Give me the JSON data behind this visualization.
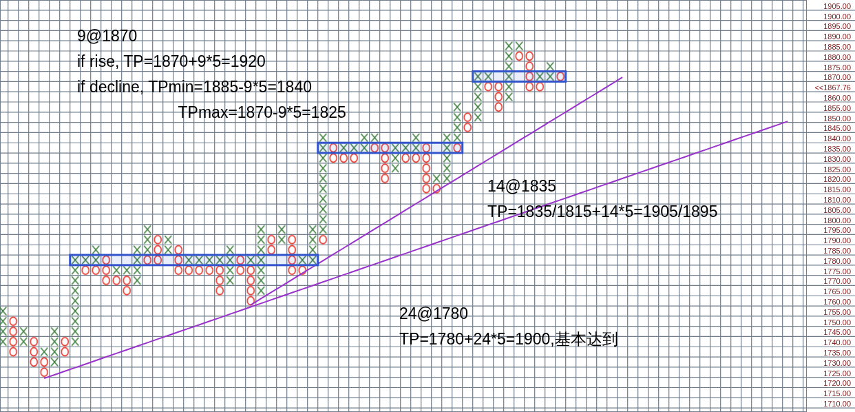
{
  "chart_data": {
    "type": "bar",
    "tick_labels": "y",
    "grid": true,
    "categories": [
      null,
      null,
      null,
      null,
      null,
      null,
      null,
      null,
      null,
      null,
      null,
      null,
      null,
      null,
      null,
      null,
      null,
      null,
      null,
      null,
      null,
      null,
      null,
      null,
      null,
      null,
      null,
      null,
      null,
      null,
      null,
      null,
      null,
      null,
      null,
      null,
      null,
      null,
      null,
      null,
      null,
      null,
      null,
      null,
      null,
      null,
      null,
      null,
      null,
      null,
      null,
      null,
      null,
      null,
      null,
      null,
      null,
      null,
      null,
      null,
      null,
      null,
      null,
      null,
      null,
      null,
      null,
      null,
      null,
      null,
      null,
      null,
      null,
      null,
      null,
      null,
      null,
      null
    ],
    "ylim": [
      1708,
      1910
    ],
    "yticks": [
      {
        "value": 1710,
        "label": "1710.00"
      },
      {
        "value": 1715,
        "label": "1715.00"
      },
      {
        "value": 1720,
        "label": "1720.00"
      },
      {
        "value": 1725,
        "label": "1725.00"
      },
      {
        "value": 1730,
        "label": "1730.00"
      },
      {
        "value": 1735,
        "label": "1735.00"
      },
      {
        "value": 1740,
        "label": "1740.00"
      },
      {
        "value": 1745,
        "label": "1745.00"
      },
      {
        "value": 1750,
        "label": "1750.00"
      },
      {
        "value": 1755,
        "label": "1755.00"
      },
      {
        "value": 1760,
        "label": "1760.00"
      },
      {
        "value": 1765,
        "label": "1765.00"
      },
      {
        "value": 1770,
        "label": "1770.00"
      },
      {
        "value": 1775,
        "label": "1775.00"
      },
      {
        "value": 1780,
        "label": "1780.00"
      },
      {
        "value": 1785,
        "label": "1785.00"
      },
      {
        "value": 1790,
        "label": "1790.00"
      },
      {
        "value": 1795,
        "label": "1795.00"
      },
      {
        "value": 1800,
        "label": "1800.00"
      },
      {
        "value": 1805,
        "label": "1805.00"
      },
      {
        "value": 1810,
        "label": "1810.00"
      },
      {
        "value": 1815,
        "label": "1815.00"
      },
      {
        "value": 1820,
        "label": "1820.00"
      },
      {
        "value": 1825,
        "label": "1825.00"
      },
      {
        "value": 1830,
        "label": "1830.00"
      },
      {
        "value": 1835,
        "label": "1835.00"
      },
      {
        "value": 1840,
        "label": "1840.00"
      },
      {
        "value": 1845,
        "label": "1845.00"
      },
      {
        "value": 1850,
        "label": "1850.00"
      },
      {
        "value": 1855,
        "label": "1855.00"
      },
      {
        "value": 1860,
        "label": "1860.00"
      },
      {
        "value": 1865,
        "label": "<<1867.76"
      },
      {
        "value": 1870,
        "label": "1870.00"
      },
      {
        "value": 1875,
        "label": "1875.00"
      },
      {
        "value": 1880,
        "label": "1880.00"
      },
      {
        "value": 1885,
        "label": "1885.00"
      },
      {
        "value": 1890,
        "label": "1890.00"
      },
      {
        "value": 1895,
        "label": "1895.00"
      },
      {
        "value": 1900,
        "label": "1900.00"
      },
      {
        "value": 1905,
        "label": "1905.00"
      }
    ],
    "series": [
      {
        "marker": "cross",
        "color": "#3a7d3a",
        "base": [
          1740,
          null,
          1740,
          null,
          1735,
          1730,
          null,
          1740,
          1780,
          1780,
          null,
          1775,
          1775,
          1770,
          1785,
          null,
          1785,
          null,
          1780,
          1780,
          1780,
          1780,
          1770,
          null,
          1780,
          1765,
          null,
          1790,
          null,
          1780,
          1780,
          1795,
          null,
          1835,
          1835,
          1835,
          1840,
          null,
          1825,
          1835,
          1835,
          null,
          1820,
          1820,
          1840,
          null,
          1850,
          1870,
          null,
          1860,
          1885,
          null,
          1870,
          1870,
          null,
          null,
          null,
          null,
          null,
          null,
          null,
          null,
          null,
          null,
          null,
          null,
          null,
          null,
          null,
          null,
          null,
          null,
          null,
          null,
          null,
          null,
          null,
          null
        ],
        "values": [
          20,
          null,
          10,
          null,
          5,
          20,
          null,
          45,
          5,
          10,
          null,
          5,
          5,
          20,
          15,
          null,
          10,
          null,
          5,
          5,
          5,
          5,
          20,
          null,
          5,
          35,
          null,
          10,
          null,
          5,
          20,
          50,
          null,
          5,
          5,
          10,
          5,
          null,
          15,
          5,
          10,
          null,
          5,
          25,
          20,
          null,
          25,
          5,
          null,
          30,
          5,
          null,
          5,
          10,
          null,
          null,
          null,
          null,
          null,
          null,
          null,
          null,
          null,
          null,
          null,
          null,
          null,
          null,
          null,
          null,
          null,
          null,
          null,
          null,
          null,
          null,
          null,
          null
        ]
      },
      {
        "marker": "circle",
        "color": "#e8281e",
        "base": [
          null,
          1735,
          null,
          1730,
          1725,
          null,
          1735,
          null,
          1775,
          1775,
          1770,
          1770,
          1765,
          null,
          1780,
          1780,
          null,
          1775,
          1775,
          1775,
          1775,
          1765,
          null,
          1775,
          1760,
          null,
          1785,
          null,
          1775,
          1775,
          null,
          1790,
          1830,
          1830,
          1830,
          null,
          1835,
          1820,
          null,
          1830,
          1830,
          1815,
          1815,
          null,
          1835,
          1845,
          null,
          1865,
          1855,
          null,
          1880,
          1865,
          1865,
          null,
          1870,
          null,
          null,
          null,
          null,
          null,
          null,
          null,
          null,
          null,
          null,
          null,
          null,
          null,
          null,
          null,
          null,
          null,
          null,
          null,
          null,
          null,
          null,
          null
        ],
        "values": [
          null,
          20,
          null,
          15,
          10,
          null,
          10,
          null,
          5,
          5,
          15,
          5,
          10,
          null,
          5,
          15,
          null,
          15,
          5,
          5,
          5,
          15,
          null,
          10,
          20,
          null,
          10,
          null,
          20,
          5,
          null,
          5,
          10,
          5,
          5,
          null,
          5,
          20,
          null,
          5,
          5,
          25,
          5,
          null,
          5,
          10,
          null,
          5,
          15,
          null,
          5,
          20,
          5,
          null,
          5,
          null,
          null,
          null,
          null,
          null,
          null,
          null,
          null,
          null,
          null,
          null,
          null,
          null,
          null,
          null,
          null,
          null,
          null,
          null,
          null,
          null,
          null,
          null
        ]
      },
      {
        "type": "line",
        "line_style": "solid",
        "color": "#9933cc",
        "values": [
          null,
          null,
          null,
          null,
          1724.5,
          1726.25,
          1728,
          1729.75,
          1731.5,
          1733.25,
          1735,
          1736.75,
          1738.5,
          1740.25,
          1742,
          1743.75,
          1745.5,
          1747.25,
          1749,
          1750.75,
          1752.5,
          1754.25,
          1756,
          1757.75,
          1759.5,
          1761.25,
          1763,
          1764.75,
          1766.5,
          1768.25,
          1770,
          1771.75,
          1773.5,
          1775.25,
          1777,
          1778.75,
          1780.5,
          1782.25,
          1784,
          1785.75,
          1787.5,
          1789.25,
          1791,
          1792.75,
          1794.5,
          1796.25,
          1798,
          1799.75,
          1801.5,
          1803.25,
          1805,
          1806.75,
          1808.5,
          1810.25,
          1812,
          1813.75,
          1815.5,
          1817.25,
          1819,
          1820.75,
          1822.5,
          1824.25,
          1826,
          1827.75,
          1829.5,
          1831.25,
          1833,
          1834.75,
          1836.5,
          1838.25,
          1840,
          1841.75,
          1843.5,
          1845.25,
          1847,
          1848.75,
          1850.5,
          null
        ]
      },
      {
        "type": "line",
        "line_style": "solid",
        "color": "#9933cc",
        "values": [
          null,
          null,
          null,
          null,
          null,
          null,
          null,
          null,
          null,
          null,
          null,
          null,
          null,
          null,
          null,
          null,
          null,
          null,
          null,
          null,
          null,
          null,
          null,
          null,
          1760.5,
          1763.6,
          1766.7,
          1769.8,
          1772.9,
          1776,
          1779.1,
          1782.2,
          1785.3,
          1788.4,
          1791.5,
          1794.6,
          1797.7,
          1800.8,
          1803.9,
          1807,
          1810.1,
          1813.2,
          1816.3,
          1819.4,
          1822.5,
          1825.6,
          1828.7,
          1831.8,
          1834.9,
          1838,
          1841.1,
          1844.2,
          1847.3,
          1850.4,
          1853.5,
          1856.6,
          1859.7,
          1862.8,
          1865.9,
          1869,
          1872.1,
          null,
          null,
          null,
          null,
          null,
          null,
          null,
          null,
          null,
          null,
          null,
          null,
          null,
          null,
          null,
          null,
          null
        ]
      }
    ],
    "bands": [
      {
        "axis": "y",
        "from": 1870,
        "to": 1875,
        "color": "#3355cc"
      },
      {
        "axis": "y",
        "from": 1835,
        "to": 1840,
        "color": "#3355cc"
      },
      {
        "axis": "y",
        "from": 1780,
        "to": 1785,
        "color": "#3355cc"
      }
    ],
    "annotations": [
      "9@1870\nif rise, TP=1870+9*5=1920\nif decline, TPmin=1885-9*5=1840\n                       TPmax=1870-9*5=1825",
      "14@1835\nTP=1835/1815+14*5=1905/1895",
      "24@1780\nTP=1780+24*5=1900,基本达到"
    ]
  }
}
